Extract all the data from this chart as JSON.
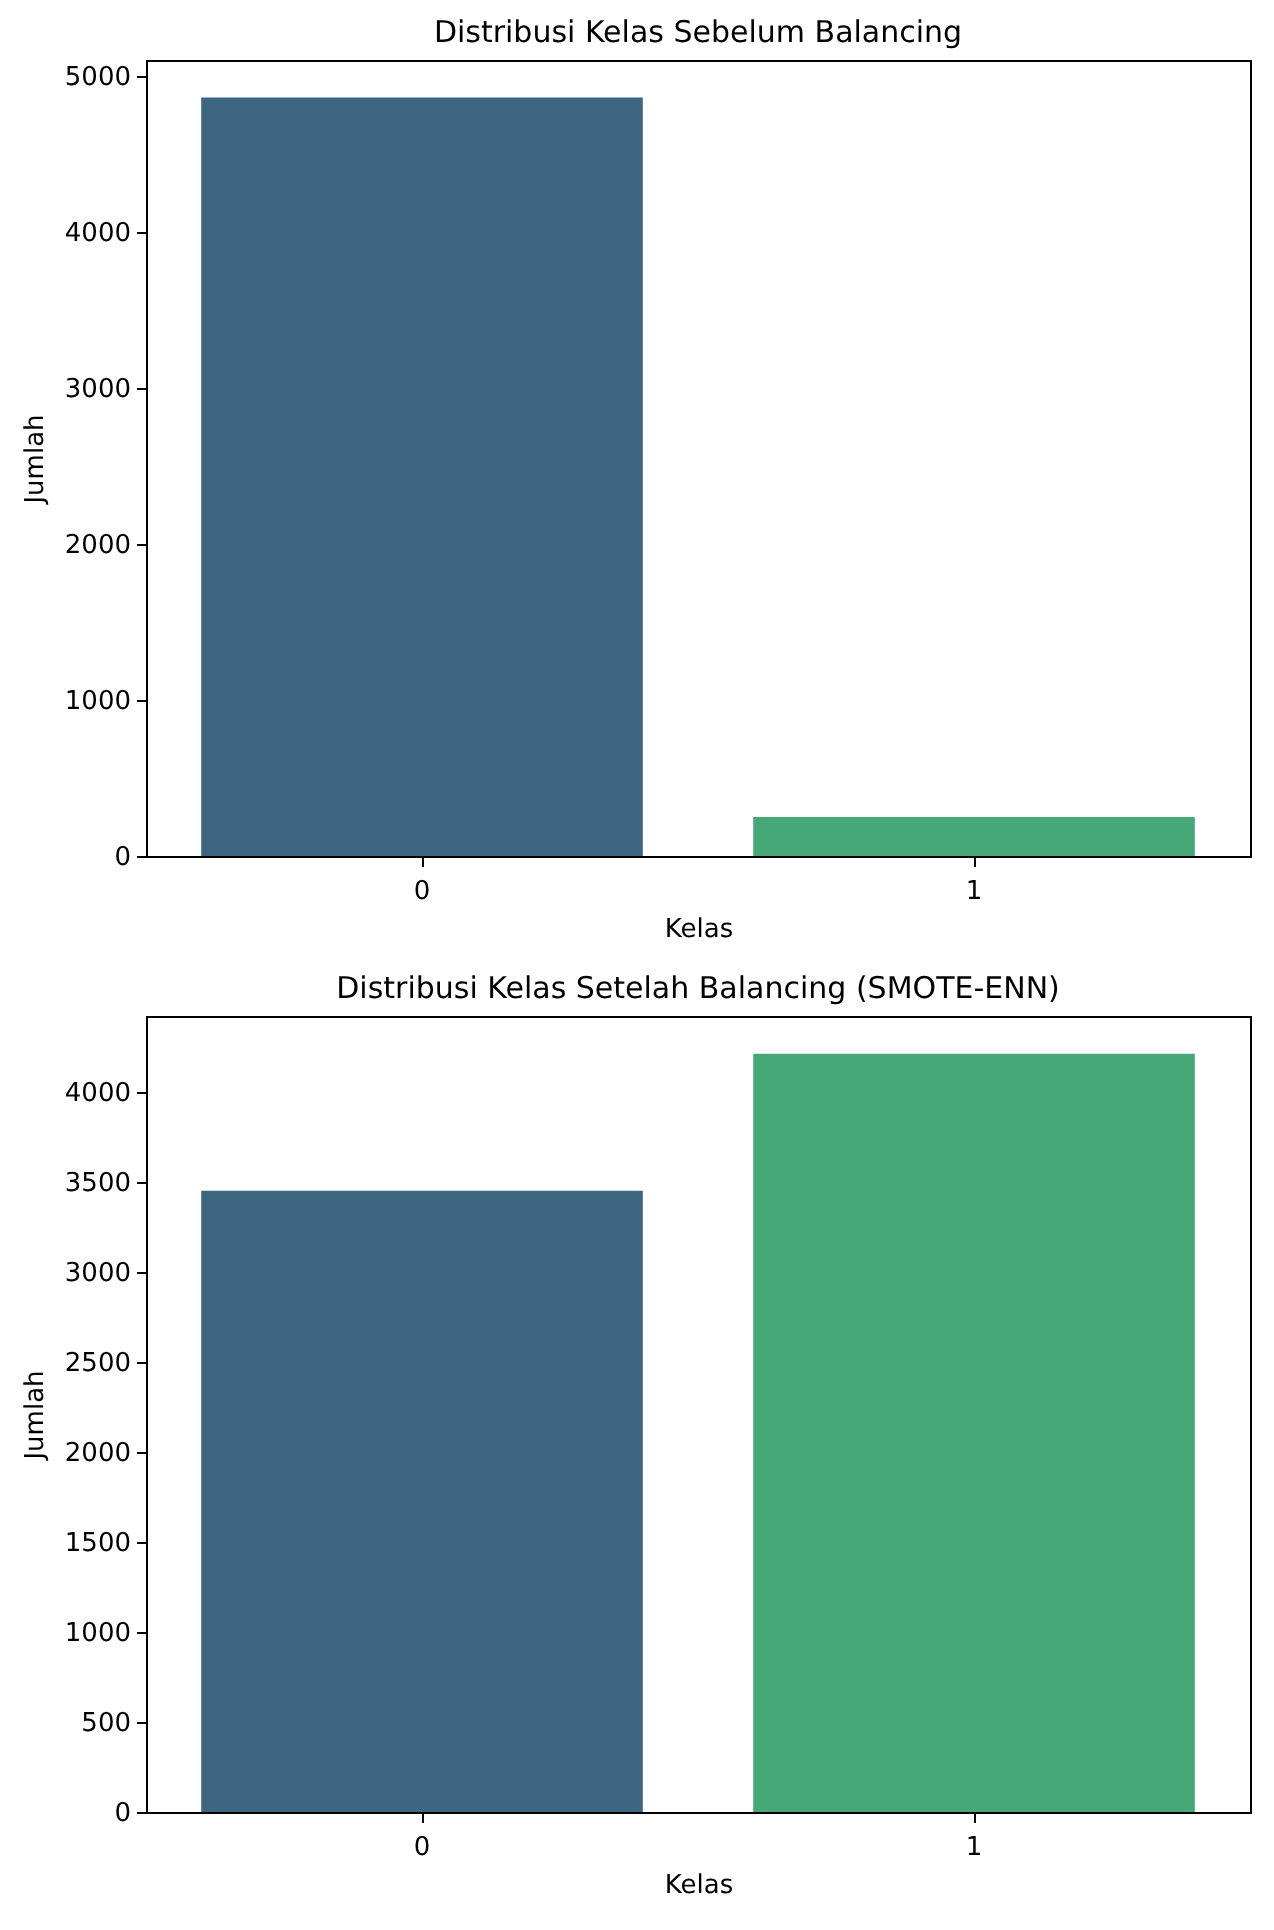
{
  "chart_data": [
    {
      "type": "bar",
      "title": "Distribusi Kelas Sebelum Balancing",
      "xlabel": "Kelas",
      "ylabel": "Jumlah",
      "categories": [
        "0",
        "1"
      ],
      "values": [
        4860,
        250
      ],
      "colors": [
        "#3e6680",
        "#46a877"
      ],
      "ylim": [
        0,
        5100
      ],
      "yticks": [
        0,
        1000,
        2000,
        3000,
        4000,
        5000
      ],
      "grid": false,
      "legend": false
    },
    {
      "type": "bar",
      "title": "Distribusi Kelas Setelah Balancing (SMOTE-ENN)",
      "xlabel": "Kelas",
      "ylabel": "Jumlah",
      "categories": [
        "0",
        "1"
      ],
      "values": [
        3450,
        4210
      ],
      "colors": [
        "#3e6680",
        "#46a877"
      ],
      "ylim": [
        0,
        4420
      ],
      "yticks": [
        0,
        500,
        1000,
        1500,
        2000,
        2500,
        3000,
        3500,
        4000
      ],
      "grid": false,
      "legend": false
    }
  ]
}
